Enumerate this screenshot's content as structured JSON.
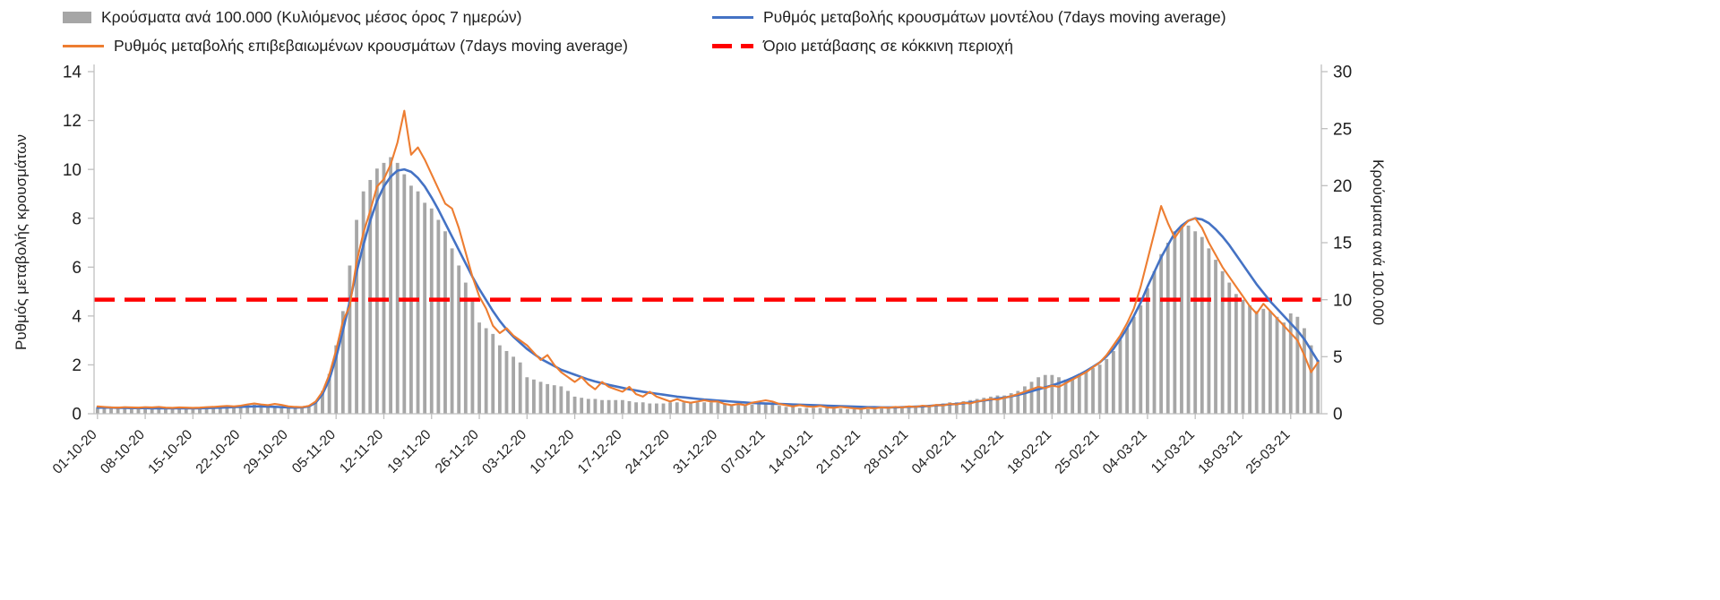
{
  "legend": {
    "position": "top"
  },
  "chart_data": {
    "type": "bar",
    "subtype": "combo-bar-and-line",
    "title": "",
    "grid": "off",
    "left_axis": {
      "label": "Ρυθμός μεταβολής κρουσμάτων",
      "min": 0,
      "max": 14,
      "ticks": [
        0,
        2,
        4,
        6,
        8,
        10,
        12,
        14
      ]
    },
    "right_axis": {
      "label": "Κρούσματα ανά 100.000",
      "min": 0,
      "max": 30,
      "ticks": [
        0,
        5,
        10,
        15,
        20,
        25,
        30
      ]
    },
    "x_start_date": "01-10-20",
    "x_end_date": "29-03-21",
    "x_tick_labels": [
      "01-10-20",
      "08-10-20",
      "15-10-20",
      "22-10-20",
      "29-10-20",
      "05-11-20",
      "12-11-20",
      "19-11-20",
      "26-11-20",
      "03-12-20",
      "10-12-20",
      "17-12-20",
      "24-12-20",
      "31-12-20",
      "07-01-21",
      "14-01-21",
      "21-01-21",
      "28-01-21",
      "04-02-21",
      "11-02-21",
      "18-02-21",
      "25-02-21",
      "04-03-21",
      "11-03-21",
      "18-03-21",
      "25-03-21"
    ],
    "series": [
      {
        "name": "Κρούσματα ανά 100.000 (Κυλιόμενος μέσος όρος 7 ημερών)",
        "type": "bar",
        "axis": "right",
        "color": "#a6a6a6",
        "values": [
          0.5,
          0.5,
          0.5,
          0.5,
          0.5,
          0.5,
          0.5,
          0.5,
          0.55,
          0.55,
          0.5,
          0.5,
          0.5,
          0.5,
          0.5,
          0.5,
          0.55,
          0.6,
          0.6,
          0.65,
          0.65,
          0.7,
          0.75,
          0.8,
          0.75,
          0.7,
          0.65,
          0.6,
          0.55,
          0.5,
          0.5,
          0.6,
          1,
          2,
          3.5,
          6,
          9,
          13,
          17,
          19.5,
          20.5,
          21.5,
          22,
          22.5,
          22,
          21,
          20,
          19.5,
          18.5,
          18,
          17,
          16,
          14.5,
          13,
          11.5,
          10,
          8,
          7.5,
          7,
          6,
          5.5,
          5,
          4.5,
          3.2,
          3,
          2.8,
          2.6,
          2.5,
          2.4,
          2,
          1.5,
          1.4,
          1.3,
          1.3,
          1.2,
          1.2,
          1.2,
          1.2,
          1.1,
          1,
          1,
          0.9,
          0.9,
          0.9,
          1,
          1,
          1,
          1,
          1,
          1,
          1,
          1,
          0.9,
          0.8,
          0.8,
          0.7,
          0.8,
          0.9,
          0.9,
          0.8,
          0.7,
          0.6,
          0.6,
          0.5,
          0.5,
          0.5,
          0.5,
          0.5,
          0.45,
          0.45,
          0.4,
          0.4,
          0.4,
          0.4,
          0.45,
          0.45,
          0.5,
          0.5,
          0.5,
          0.5,
          0.55,
          0.6,
          0.7,
          0.8,
          0.9,
          1,
          1,
          1.1,
          1.2,
          1.3,
          1.4,
          1.5,
          1.6,
          1.6,
          1.8,
          2,
          2.4,
          2.8,
          3.2,
          3.4,
          3.4,
          3.2,
          3,
          3.2,
          3.5,
          3.8,
          4,
          4.3,
          4.8,
          5.5,
          6.5,
          7.5,
          8.5,
          9.5,
          11,
          12.5,
          14,
          15,
          16,
          16.5,
          16.5,
          16,
          15.5,
          14.5,
          13.5,
          12.5,
          11.5,
          10.5,
          10,
          9.5,
          9,
          9.2,
          9,
          8.5,
          8,
          8.8,
          8.5,
          7.5,
          6,
          4.7
        ]
      },
      {
        "name": "Ρυθμός μεταβολής κρουσμάτων μοντέλου (7days moving average)",
        "type": "line",
        "axis": "left",
        "color": "#4472c4",
        "values": [
          0.25,
          0.25,
          0.25,
          0.24,
          0.24,
          0.23,
          0.23,
          0.23,
          0.22,
          0.22,
          0.22,
          0.22,
          0.22,
          0.22,
          0.22,
          0.22,
          0.23,
          0.24,
          0.25,
          0.26,
          0.27,
          0.28,
          0.29,
          0.3,
          0.3,
          0.29,
          0.28,
          0.27,
          0.26,
          0.25,
          0.26,
          0.3,
          0.45,
          0.8,
          1.4,
          2.3,
          3.4,
          4.6,
          5.8,
          6.9,
          7.9,
          8.7,
          9.3,
          9.7,
          9.95,
          10,
          9.9,
          9.65,
          9.3,
          8.85,
          8.35,
          7.8,
          7.25,
          6.7,
          6.15,
          5.6,
          5.1,
          4.65,
          4.2,
          3.8,
          3.45,
          3.15,
          2.9,
          2.65,
          2.45,
          2.25,
          2.1,
          1.95,
          1.8,
          1.7,
          1.6,
          1.5,
          1.4,
          1.32,
          1.25,
          1.18,
          1.12,
          1.06,
          1,
          0.95,
          0.9,
          0.86,
          0.82,
          0.78,
          0.74,
          0.7,
          0.67,
          0.64,
          0.61,
          0.58,
          0.56,
          0.54,
          0.52,
          0.5,
          0.48,
          0.46,
          0.44,
          0.43,
          0.42,
          0.41,
          0.4,
          0.39,
          0.38,
          0.37,
          0.36,
          0.35,
          0.34,
          0.33,
          0.32,
          0.31,
          0.3,
          0.29,
          0.28,
          0.27,
          0.27,
          0.26,
          0.26,
          0.26,
          0.27,
          0.28,
          0.29,
          0.3,
          0.32,
          0.34,
          0.36,
          0.38,
          0.4,
          0.43,
          0.46,
          0.5,
          0.54,
          0.58,
          0.62,
          0.66,
          0.71,
          0.77,
          0.84,
          0.92,
          1,
          1.08,
          1.16,
          1.25,
          1.35,
          1.47,
          1.6,
          1.75,
          1.92,
          2.1,
          2.35,
          2.65,
          3.05,
          3.5,
          4,
          4.55,
          5.2,
          5.8,
          6.4,
          6.9,
          7.4,
          7.7,
          7.9,
          8,
          7.95,
          7.8,
          7.55,
          7.25,
          6.9,
          6.5,
          6.1,
          5.7,
          5.3,
          4.95,
          4.6,
          4.3,
          4,
          3.7,
          3.4,
          3.05,
          2.6,
          2.15
        ]
      },
      {
        "name": "Ρυθμός μεταβολής επιβεβαιωμένων κρουσμάτων (7days moving average)",
        "type": "line",
        "axis": "left",
        "color": "#ed7d31",
        "values": [
          0.3,
          0.28,
          0.26,
          0.25,
          0.27,
          0.26,
          0.25,
          0.27,
          0.26,
          0.28,
          0.25,
          0.24,
          0.26,
          0.25,
          0.24,
          0.25,
          0.27,
          0.28,
          0.3,
          0.32,
          0.3,
          0.33,
          0.38,
          0.42,
          0.38,
          0.35,
          0.4,
          0.36,
          0.3,
          0.28,
          0.27,
          0.32,
          0.5,
          0.9,
          1.6,
          2.6,
          3.8,
          4.4,
          6.2,
          7.4,
          8.3,
          9.3,
          9.6,
          10.2,
          11.1,
          12.4,
          10.6,
          10.9,
          10.4,
          9.8,
          9.2,
          8.6,
          8.4,
          7.6,
          6.6,
          5.6,
          4.8,
          4.3,
          3.6,
          3.3,
          3.5,
          3.2,
          3,
          2.8,
          2.5,
          2.2,
          2.4,
          2,
          1.7,
          1.5,
          1.3,
          1.5,
          1.2,
          1,
          1.3,
          1.1,
          1,
          0.9,
          1.1,
          0.8,
          0.7,
          0.9,
          0.7,
          0.6,
          0.5,
          0.6,
          0.5,
          0.45,
          0.5,
          0.55,
          0.5,
          0.5,
          0.4,
          0.35,
          0.4,
          0.35,
          0.45,
          0.5,
          0.55,
          0.5,
          0.4,
          0.35,
          0.3,
          0.35,
          0.3,
          0.28,
          0.32,
          0.26,
          0.24,
          0.28,
          0.25,
          0.22,
          0.2,
          0.24,
          0.22,
          0.26,
          0.24,
          0.28,
          0.26,
          0.3,
          0.28,
          0.33,
          0.3,
          0.36,
          0.34,
          0.4,
          0.38,
          0.45,
          0.42,
          0.5,
          0.55,
          0.6,
          0.58,
          0.65,
          0.72,
          0.8,
          0.9,
          1,
          1.1,
          1.05,
          1.15,
          1.1,
          1.25,
          1.4,
          1.55,
          1.7,
          1.9,
          2.1,
          2.4,
          2.8,
          3.2,
          3.7,
          4.3,
          5.2,
          6.3,
          7.4,
          8.5,
          7.8,
          7.2,
          7.6,
          7.9,
          8,
          7.6,
          7,
          6.5,
          6,
          5.6,
          5.2,
          4.8,
          4.4,
          4.1,
          4.5,
          4.2,
          3.9,
          3.6,
          3.3,
          3,
          2.4,
          1.7,
          2.1
        ]
      },
      {
        "name": "Όριο μετάβασης σε κόκκινη περιοχή",
        "type": "threshold-dashed-line",
        "axis": "right",
        "color": "#ff0000",
        "value": 10
      }
    ]
  }
}
